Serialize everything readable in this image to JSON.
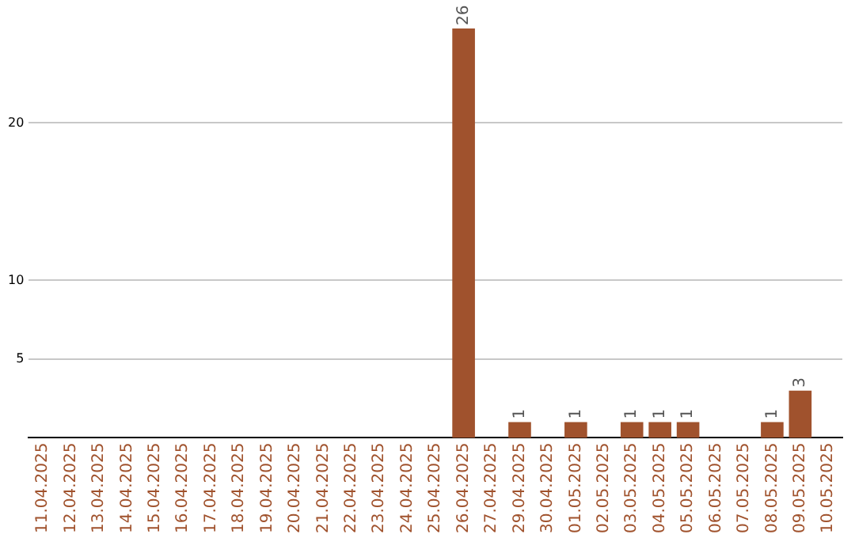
{
  "chart_data": {
    "type": "bar",
    "categories": [
      "11.04.2025",
      "12.04.2025",
      "13.04.2025",
      "14.04.2025",
      "15.04.2025",
      "16.04.2025",
      "17.04.2025",
      "18.04.2025",
      "19.04.2025",
      "20.04.2025",
      "21.04.2025",
      "22.04.2025",
      "23.04.2025",
      "24.04.2025",
      "25.04.2025",
      "26.04.2025",
      "27.04.2025",
      "29.04.2025",
      "30.04.2025",
      "01.05.2025",
      "02.05.2025",
      "03.05.2025",
      "04.05.2025",
      "05.05.2025",
      "06.05.2025",
      "07.05.2025",
      "08.05.2025",
      "09.05.2025",
      "10.05.2025"
    ],
    "values": [
      0,
      0,
      0,
      0,
      0,
      0,
      0,
      0,
      0,
      0,
      0,
      0,
      0,
      0,
      0,
      26,
      0,
      1,
      0,
      1,
      0,
      1,
      1,
      1,
      0,
      0,
      1,
      3,
      0
    ],
    "value_labels": [
      null,
      null,
      null,
      null,
      null,
      null,
      null,
      null,
      null,
      null,
      null,
      null,
      null,
      null,
      null,
      "26",
      null,
      "1",
      null,
      "1",
      null,
      "1",
      "1",
      "1",
      null,
      null,
      "1",
      "3",
      null
    ],
    "color": "#a0522d",
    "ylim": [
      0,
      26
    ],
    "yticks": [
      5,
      10,
      20
    ],
    "grid": "y",
    "legend": false
  }
}
